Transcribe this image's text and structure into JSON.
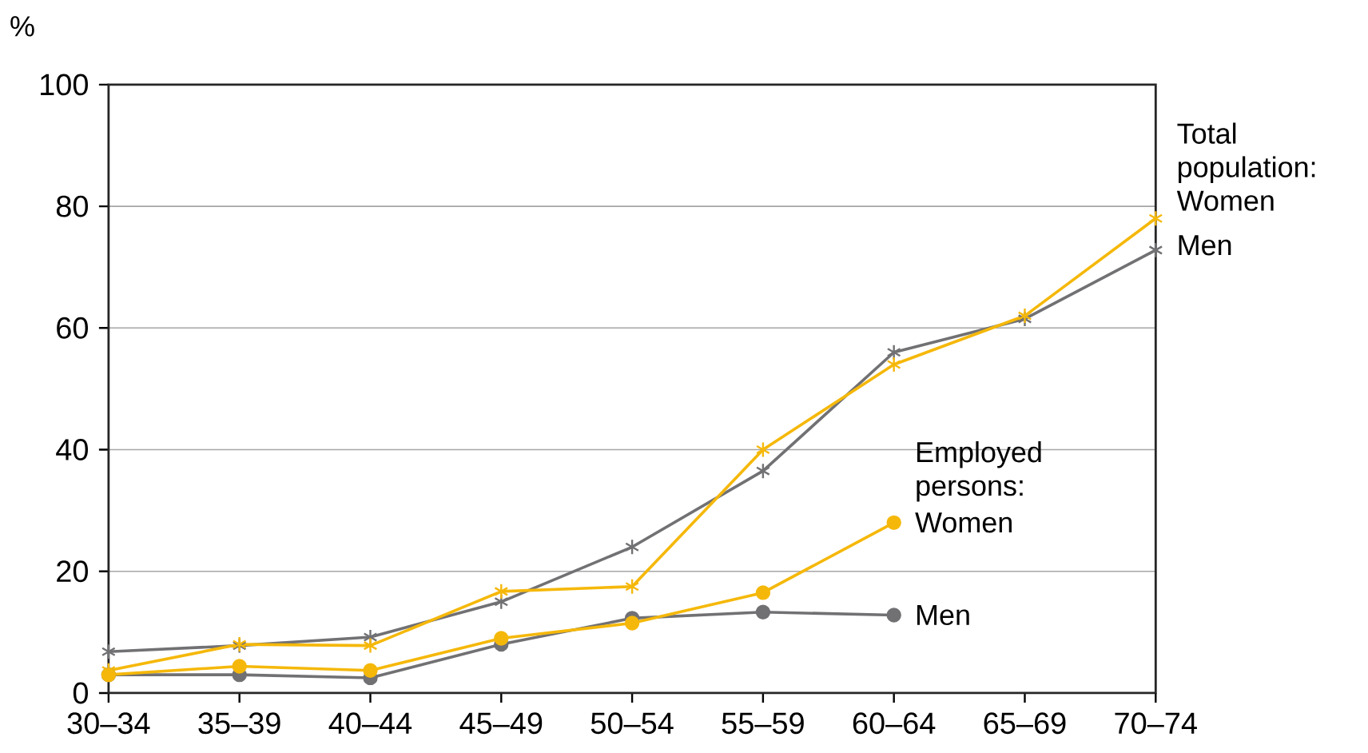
{
  "chart_data": {
    "type": "line",
    "ylabel": "%",
    "categories": [
      "30–34",
      "35–39",
      "40–44",
      "45–49",
      "50–54",
      "55–59",
      "60–64",
      "65–69",
      "70–74"
    ],
    "series": [
      {
        "name": "Men",
        "color": "#717174",
        "marker": "cross",
        "values": [
          6.8,
          7.8,
          9.2,
          15,
          24,
          36.5,
          56,
          61.5,
          72.8
        ]
      },
      {
        "name": "Women",
        "color": "#f5b80a",
        "marker": "cross",
        "values": [
          3.7,
          8,
          7.8,
          16.7,
          17.5,
          40,
          54,
          62,
          78
        ]
      },
      {
        "name": "Men",
        "color": "#717174",
        "marker": "circle",
        "values": [
          3,
          3,
          2.5,
          8,
          12.3,
          13.3,
          12.8,
          null,
          null
        ]
      },
      {
        "name": "Women",
        "color": "#f5b80a",
        "marker": "circle",
        "values": [
          3,
          4.4,
          3.7,
          9,
          11.5,
          16.5,
          28,
          null,
          null
        ]
      }
    ],
    "annotations": [
      "Total population:",
      "Employed persons:"
    ],
    "ylim": [
      0,
      100
    ],
    "yticks": [
      0,
      20,
      40,
      60,
      80,
      100
    ],
    "grid": "y"
  }
}
